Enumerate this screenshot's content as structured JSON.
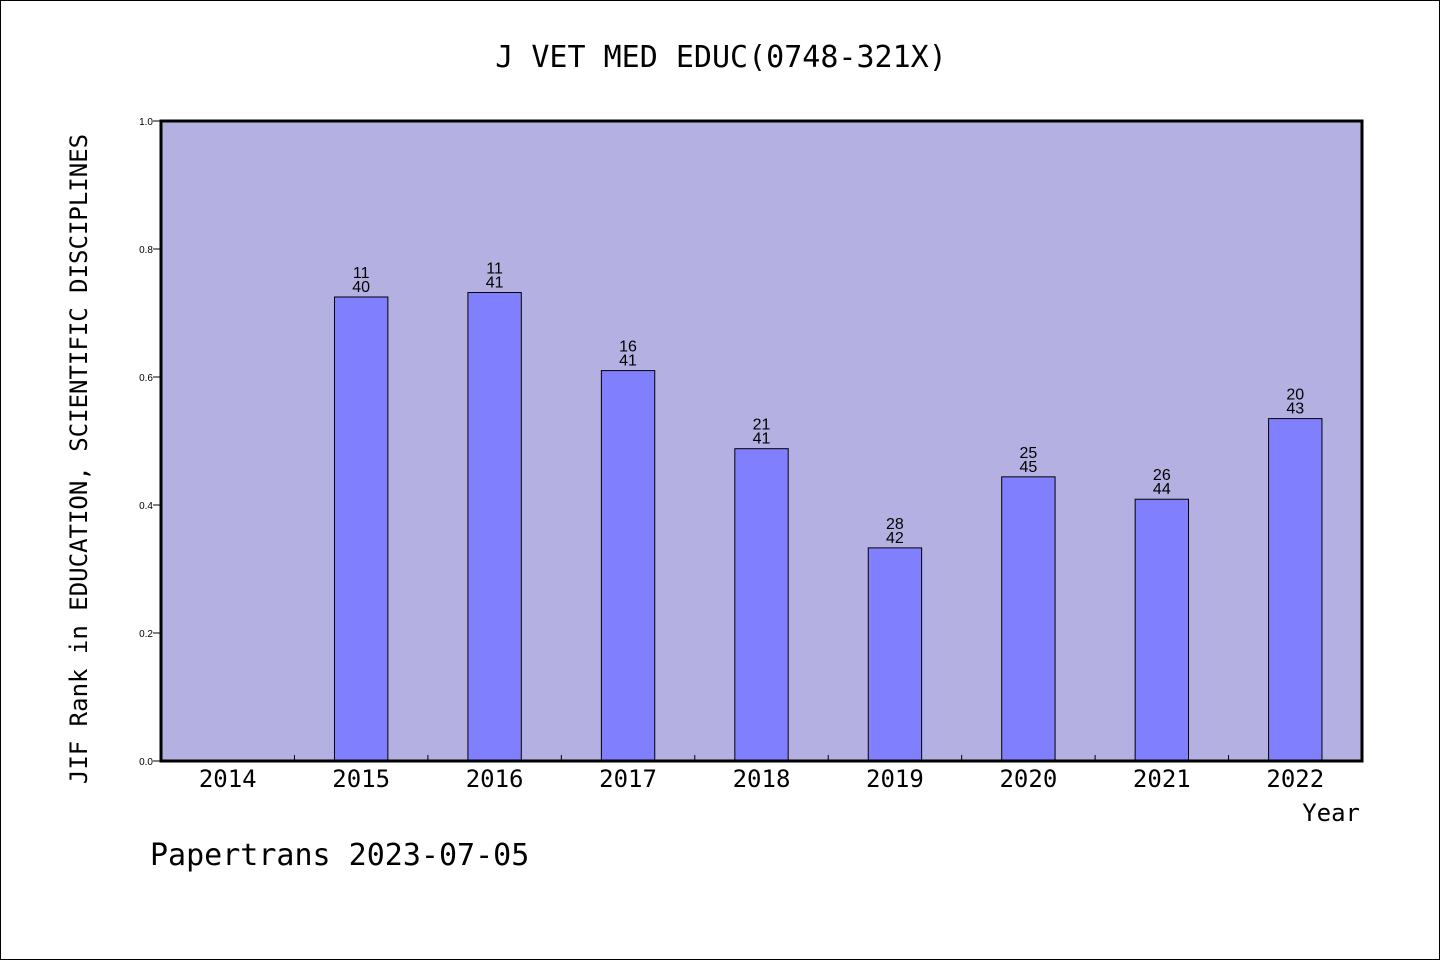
{
  "chart_data": {
    "type": "bar",
    "title": "J VET MED EDUC(0748-321X)",
    "ylabel": "JIF Rank in EDUCATION, SCIENTIFIC DISCIPLINES",
    "xlabel": "Year",
    "ylim": [
      0,
      1.0
    ],
    "yticks": [
      "0.0",
      "0.2",
      "0.4",
      "0.6",
      "0.8",
      "1.0"
    ],
    "categories": [
      "2014",
      "2015",
      "2016",
      "2017",
      "2018",
      "2019",
      "2020",
      "2021",
      "2022"
    ],
    "values": [
      null,
      0.725,
      0.732,
      0.61,
      0.488,
      0.333,
      0.444,
      0.409,
      0.535
    ],
    "rank_labels": [
      null,
      {
        "rank": "11",
        "total": "40"
      },
      {
        "rank": "11",
        "total": "41"
      },
      {
        "rank": "16",
        "total": "41"
      },
      {
        "rank": "21",
        "total": "41"
      },
      {
        "rank": "28",
        "total": "42"
      },
      {
        "rank": "25",
        "total": "45"
      },
      {
        "rank": "26",
        "total": "44"
      },
      {
        "rank": "20",
        "total": "43"
      }
    ],
    "grid": false,
    "colors": {
      "plot_background": "#b5b0e2",
      "bar_fill": "#8080ff",
      "bar_stroke": "#000000",
      "frame": "#000000"
    }
  },
  "footer": {
    "source": "Papertrans 2023-07-05"
  }
}
